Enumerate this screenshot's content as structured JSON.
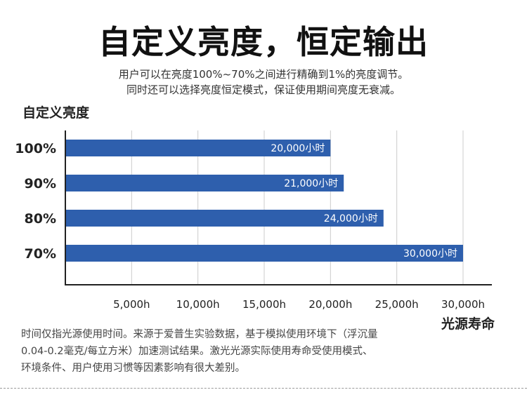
{
  "title": "自定义亮度，恒定输出",
  "subtitle_lines": [
    "用户可以在亮度100%~70%之间进行精确到1%的亮度调节。",
    "同时还可以选择亮度恒定模式，保证使用期间亮度无衰减。"
  ],
  "note_lines": [
    "时间仅指光源使用时间。来源于爱普生实验数据，基于模拟使用环境下（浮沉量",
    "0.04-0.2毫克/每立方米）加速测试结果。激光光源实际使用寿命受使用模式、",
    "环境条件、用户使用习惯等因素影响有很大差别。"
  ],
  "colors": {
    "bar": "#2e5fad",
    "grid": "#cccccc",
    "axis": "#222222"
  },
  "chart_data": {
    "type": "bar",
    "orientation": "horizontal",
    "ylabel": "自定义亮度",
    "xlabel": "光源寿命",
    "categories": [
      "100%",
      "90%",
      "80%",
      "70%"
    ],
    "values": [
      20000,
      21000,
      24000,
      30000
    ],
    "data_labels": [
      "20,000小时",
      "21,000小时",
      "24,000小时",
      "30,000小时"
    ],
    "xticks": [
      5000,
      10000,
      15000,
      20000,
      25000,
      30000
    ],
    "xtick_labels": [
      "5,000h",
      "10,000h",
      "15,000h",
      "20,000h",
      "25,000h",
      "30,000h"
    ],
    "xlim": [
      0,
      32000
    ],
    "grid": true
  }
}
